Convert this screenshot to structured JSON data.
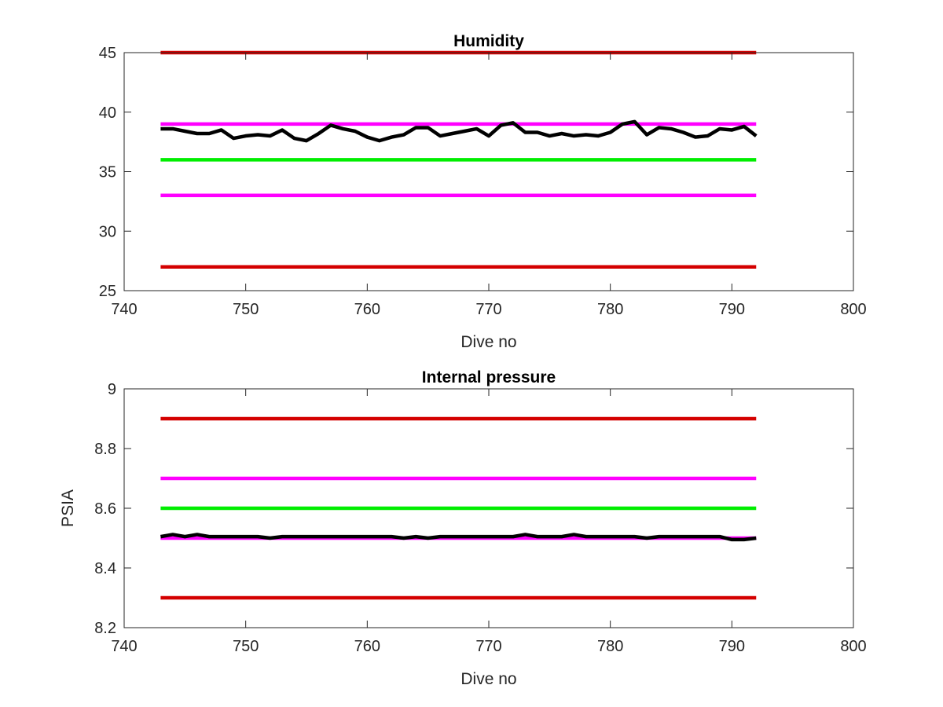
{
  "chart_data": [
    {
      "type": "line",
      "title": "Humidity",
      "xlabel": "Dive no",
      "ylabel": "",
      "xlim": [
        740,
        800
      ],
      "ylim": [
        25,
        45
      ],
      "xticks": [
        "740",
        "750",
        "760",
        "770",
        "780",
        "790",
        "800"
      ],
      "yticks": [
        "25",
        "30",
        "35",
        "40",
        "45"
      ],
      "grid": false,
      "legend": "none",
      "reference_lines": [
        {
          "color": "#d40000",
          "x": [
            743,
            792
          ],
          "y": 45
        },
        {
          "color": "#ff00ff",
          "x": [
            743,
            792
          ],
          "y": 39
        },
        {
          "color": "#00ee00",
          "x": [
            743,
            792
          ],
          "y": 36
        },
        {
          "color": "#ff00ff",
          "x": [
            743,
            792
          ],
          "y": 33
        },
        {
          "color": "#d40000",
          "x": [
            743,
            792
          ],
          "y": 27
        }
      ],
      "series": [
        {
          "color": "#000000",
          "x": [
            743,
            744,
            745,
            746,
            747,
            748,
            749,
            750,
            751,
            752,
            753,
            754,
            755,
            756,
            757,
            758,
            759,
            760,
            761,
            762,
            763,
            764,
            765,
            766,
            767,
            768,
            769,
            770,
            771,
            772,
            773,
            774,
            775,
            776,
            777,
            778,
            779,
            780,
            781,
            782,
            783,
            784,
            785,
            786,
            787,
            788,
            789,
            790,
            791,
            792
          ],
          "values": [
            38.6,
            38.6,
            38.4,
            38.2,
            38.2,
            38.5,
            37.8,
            38.0,
            38.1,
            38.0,
            38.5,
            37.8,
            37.6,
            38.2,
            38.9,
            38.6,
            38.4,
            37.9,
            37.6,
            37.9,
            38.1,
            38.7,
            38.7,
            38.0,
            38.2,
            38.4,
            38.6,
            38.0,
            38.9,
            39.1,
            38.3,
            38.3,
            38.0,
            38.2,
            38.0,
            38.1,
            38.0,
            38.3,
            39.0,
            39.2,
            38.1,
            38.7,
            38.6,
            38.3,
            37.9,
            38.0,
            38.6,
            38.5,
            38.8,
            38.0
          ]
        }
      ]
    },
    {
      "type": "line",
      "title": "Internal pressure",
      "xlabel": "Dive no",
      "ylabel": "PSIA",
      "xlim": [
        740,
        800
      ],
      "ylim": [
        8.2,
        9
      ],
      "xticks": [
        "740",
        "750",
        "760",
        "770",
        "780",
        "790",
        "800"
      ],
      "yticks": [
        "8.2",
        "8.4",
        "8.6",
        "8.8",
        "9"
      ],
      "grid": false,
      "legend": "none",
      "reference_lines": [
        {
          "color": "#d40000",
          "x": [
            743,
            792
          ],
          "y": 8.9
        },
        {
          "color": "#ff00ff",
          "x": [
            743,
            792
          ],
          "y": 8.7
        },
        {
          "color": "#00ee00",
          "x": [
            743,
            792
          ],
          "y": 8.6
        },
        {
          "color": "#ff00ff",
          "x": [
            743,
            792
          ],
          "y": 8.5
        },
        {
          "color": "#d40000",
          "x": [
            743,
            792
          ],
          "y": 8.3
        }
      ],
      "series": [
        {
          "color": "#000000",
          "x": [
            743,
            744,
            745,
            746,
            747,
            748,
            749,
            750,
            751,
            752,
            753,
            754,
            755,
            756,
            757,
            758,
            759,
            760,
            761,
            762,
            763,
            764,
            765,
            766,
            767,
            768,
            769,
            770,
            771,
            772,
            773,
            774,
            775,
            776,
            777,
            778,
            779,
            780,
            781,
            782,
            783,
            784,
            785,
            786,
            787,
            788,
            789,
            790,
            791,
            792
          ],
          "values": [
            8.505,
            8.512,
            8.505,
            8.512,
            8.505,
            8.505,
            8.505,
            8.505,
            8.505,
            8.5,
            8.505,
            8.505,
            8.505,
            8.505,
            8.505,
            8.505,
            8.505,
            8.505,
            8.505,
            8.505,
            8.5,
            8.505,
            8.5,
            8.505,
            8.505,
            8.505,
            8.505,
            8.505,
            8.505,
            8.505,
            8.512,
            8.505,
            8.505,
            8.505,
            8.512,
            8.505,
            8.505,
            8.505,
            8.505,
            8.505,
            8.5,
            8.505,
            8.505,
            8.505,
            8.505,
            8.505,
            8.505,
            8.495,
            8.495,
            8.5
          ]
        }
      ]
    }
  ]
}
